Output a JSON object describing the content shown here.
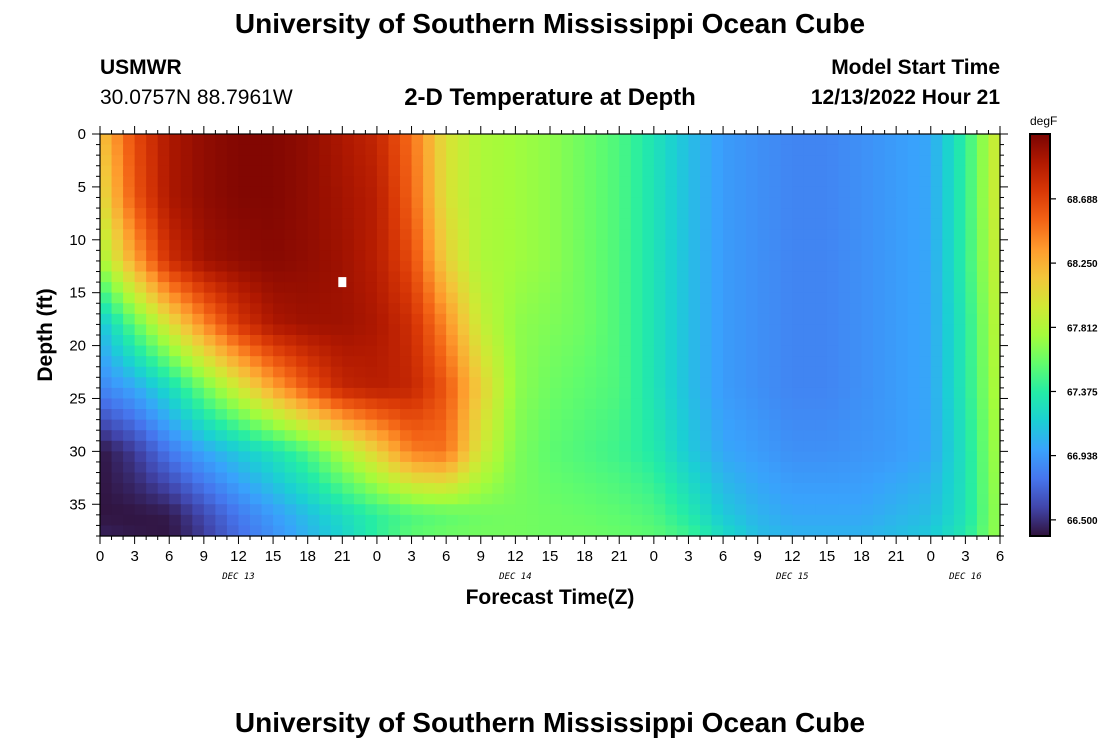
{
  "header": {
    "title": "University of Southern Mississippi Ocean Cube",
    "station": "USMWR",
    "coordinates": "30.0757N  88.7961W",
    "subtitle": "2-D Temperature at Depth",
    "model_start_label": "Model Start Time",
    "model_start_value": "12/13/2022 Hour 21"
  },
  "footer": {
    "title": "University of Southern Mississippi Ocean Cube"
  },
  "colorbar": {
    "unit": "degF",
    "ticks": [
      "66.500",
      "66.938",
      "67.375",
      "67.812",
      "68.250",
      "68.688"
    ],
    "tick_values": [
      66.5,
      66.938,
      67.375,
      67.812,
      68.25,
      68.688
    ],
    "range": [
      66.39,
      69.13
    ],
    "colors": [
      "#30123b",
      "#4145ab",
      "#4675ed",
      "#39a2fc",
      "#1bcfd4",
      "#24eca6",
      "#61fc6c",
      "#a4fc3b",
      "#d1e834",
      "#f3c63a",
      "#fe9b2d",
      "#f36315",
      "#d93806",
      "#b11901",
      "#7a0402"
    ]
  },
  "chart_data": {
    "type": "heatmap",
    "title": "2-D Temperature at Depth",
    "xlabel": "Forecast Time(Z)",
    "ylabel": "Depth (ft)",
    "x_tick_labels": [
      "0",
      "3",
      "6",
      "9",
      "12",
      "15",
      "18",
      "21",
      "0",
      "3",
      "6",
      "9",
      "12",
      "15",
      "18",
      "21",
      "0",
      "3",
      "6",
      "9",
      "12",
      "15",
      "18",
      "21",
      "0",
      "3",
      "6"
    ],
    "day_labels": [
      {
        "label": "DEC 13",
        "at_tick": 4
      },
      {
        "label": "DEC 14",
        "at_tick": 12
      },
      {
        "label": "DEC 15",
        "at_tick": 20
      },
      {
        "label": "DEC 16",
        "at_tick": 25
      }
    ],
    "xlim_hours": [
      0,
      78
    ],
    "ylim_ft": [
      38,
      0
    ],
    "y_ticks": [
      0,
      5,
      10,
      15,
      20,
      25,
      30,
      35
    ],
    "y_tick_labels": [
      "0",
      "5",
      "10",
      "15",
      "20",
      "25",
      "30",
      "35"
    ],
    "depths_ft": [
      0,
      6,
      12,
      18,
      24,
      30,
      36,
      38
    ],
    "times_hours": [
      0,
      3,
      6,
      9,
      12,
      15,
      18,
      21,
      24,
      27,
      30,
      33,
      36,
      39,
      42,
      45,
      48,
      51,
      54,
      57,
      60,
      63,
      66,
      69,
      72,
      75,
      78
    ],
    "temperature_degF": [
      [
        68.15,
        68.65,
        68.95,
        69.05,
        69.1,
        69.1,
        69.05,
        68.95,
        68.85,
        68.5,
        68.0,
        67.8,
        67.75,
        67.7,
        67.6,
        67.5,
        67.3,
        67.1,
        66.95,
        66.9,
        66.85,
        66.85,
        66.9,
        66.95,
        67.0,
        67.4,
        68.0
      ],
      [
        68.0,
        68.6,
        68.95,
        69.05,
        69.1,
        69.1,
        69.05,
        68.98,
        68.9,
        68.55,
        68.0,
        67.8,
        67.75,
        67.7,
        67.6,
        67.5,
        67.3,
        67.1,
        66.95,
        66.9,
        66.85,
        66.85,
        66.9,
        66.95,
        67.0,
        67.4,
        68.0
      ],
      [
        67.75,
        68.3,
        68.8,
        69.0,
        69.05,
        69.08,
        69.05,
        69.0,
        68.9,
        68.65,
        68.1,
        67.8,
        67.75,
        67.7,
        67.6,
        67.5,
        67.3,
        67.1,
        66.95,
        66.9,
        66.85,
        66.85,
        66.9,
        66.95,
        67.0,
        67.4,
        67.95
      ],
      [
        67.1,
        67.55,
        68.0,
        68.4,
        68.75,
        68.95,
        69.0,
        69.0,
        68.95,
        68.8,
        68.4,
        67.9,
        67.7,
        67.65,
        67.6,
        67.5,
        67.3,
        67.1,
        66.95,
        66.9,
        66.85,
        66.85,
        66.9,
        66.95,
        67.0,
        67.35,
        67.9
      ],
      [
        66.85,
        67.0,
        67.25,
        67.6,
        67.95,
        68.3,
        68.6,
        68.85,
        68.9,
        68.85,
        68.6,
        68.1,
        67.7,
        67.6,
        67.55,
        67.5,
        67.3,
        67.1,
        66.95,
        66.9,
        66.85,
        66.85,
        66.9,
        66.95,
        67.0,
        67.35,
        67.85
      ],
      [
        66.4,
        66.55,
        66.8,
        67.0,
        67.15,
        67.3,
        67.5,
        67.8,
        68.1,
        68.45,
        68.5,
        67.95,
        67.65,
        67.55,
        67.5,
        67.45,
        67.35,
        67.15,
        67.0,
        66.95,
        66.9,
        66.9,
        66.92,
        66.95,
        67.0,
        67.3,
        67.8
      ],
      [
        66.4,
        66.4,
        66.42,
        66.6,
        66.8,
        66.95,
        67.1,
        67.25,
        67.4,
        67.5,
        67.55,
        67.6,
        67.62,
        67.6,
        67.58,
        67.55,
        67.5,
        67.35,
        67.15,
        67.05,
        67.0,
        67.0,
        67.0,
        67.05,
        67.1,
        67.3,
        67.75
      ],
      [
        66.45,
        66.42,
        66.4,
        66.55,
        66.75,
        66.9,
        67.05,
        67.2,
        67.4,
        67.55,
        67.6,
        67.62,
        67.62,
        67.6,
        67.6,
        67.58,
        67.55,
        67.45,
        67.25,
        67.1,
        67.05,
        67.05,
        67.05,
        67.1,
        67.15,
        67.35,
        67.75
      ]
    ],
    "marker": {
      "time_hours": 21,
      "depth_ft": 14,
      "color": "#ffffff"
    }
  }
}
